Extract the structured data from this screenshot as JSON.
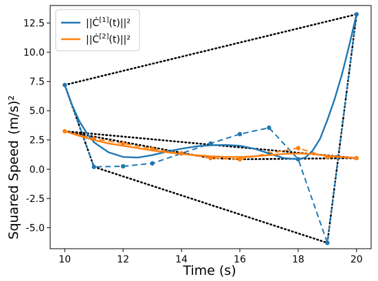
{
  "chart_data": {
    "type": "line",
    "xlabel": "Time (s)",
    "ylabel": "Squared Speed",
    "ylabel_unit": "(m/s)²",
    "xlim": [
      9.5,
      20.5
    ],
    "ylim": [
      -6.8,
      14.0
    ],
    "xticks": [
      10,
      12,
      14,
      16,
      18,
      20
    ],
    "yticks": [
      -5.0,
      -2.5,
      0.0,
      2.5,
      5.0,
      7.5,
      10.0,
      12.5
    ],
    "grid": false,
    "legend_position": "top-left",
    "colors": {
      "series1": "#1f77b4",
      "series2": "#ff7f0e",
      "hull": "#000000"
    },
    "legend": [
      {
        "series": "series1",
        "label_main": "||Ċ",
        "label_sup": "[1]",
        "label_tail": "(t)||²"
      },
      {
        "series": "series2",
        "label_main": "||Ċ",
        "label_sup": "[2]",
        "label_tail": "(t)||²"
      }
    ],
    "series": [
      {
        "id": "series1",
        "control_points": {
          "x": [
            10,
            11,
            12,
            13,
            14,
            15,
            16,
            17,
            18,
            19,
            20
          ],
          "y": [
            7.2,
            0.2,
            0.25,
            0.5,
            1.35,
            2.2,
            3.0,
            3.55,
            0.85,
            -6.3,
            13.25
          ]
        },
        "curve": {
          "x": [
            10,
            10.25,
            10.5,
            10.75,
            11,
            11.5,
            12,
            12.5,
            13,
            13.5,
            14,
            14.5,
            15,
            15.5,
            16,
            16.5,
            17,
            17.5,
            18,
            18.25,
            18.5,
            18.75,
            19,
            19.25,
            19.5,
            19.75,
            20
          ],
          "y": [
            7.2,
            5.5,
            4.1,
            3.1,
            2.3,
            1.45,
            1.05,
            1.0,
            1.2,
            1.5,
            1.75,
            1.95,
            2.05,
            2.08,
            2.0,
            1.75,
            1.35,
            0.95,
            0.85,
            1.0,
            1.6,
            2.6,
            4.2,
            6.0,
            8.1,
            10.6,
            13.25
          ]
        },
        "hull": {
          "x": [
            10,
            20,
            19,
            11,
            10
          ],
          "y": [
            7.2,
            13.25,
            -6.3,
            0.2,
            7.2
          ]
        }
      },
      {
        "id": "series2",
        "control_points": {
          "x": [
            10,
            11,
            12,
            13,
            14,
            15,
            16,
            17,
            18,
            19,
            20
          ],
          "y": [
            3.25,
            2.6,
            2.2,
            1.75,
            1.35,
            0.95,
            0.85,
            1.35,
            1.8,
            1.05,
            0.95
          ]
        },
        "curve": {
          "x": [
            10,
            10.5,
            11,
            11.5,
            12,
            12.5,
            13,
            13.5,
            14,
            14.5,
            15,
            15.5,
            16,
            16.5,
            17,
            17.5,
            18,
            18.5,
            19,
            19.5,
            20
          ],
          "y": [
            3.25,
            2.85,
            2.5,
            2.2,
            2.0,
            1.8,
            1.6,
            1.45,
            1.3,
            1.2,
            1.1,
            1.05,
            1.05,
            1.1,
            1.2,
            1.3,
            1.35,
            1.3,
            1.15,
            1.05,
            0.95
          ]
        },
        "hull": {
          "x": [
            10,
            20,
            16,
            15,
            10
          ],
          "y": [
            3.25,
            0.95,
            0.85,
            0.95,
            3.25
          ]
        }
      }
    ]
  }
}
